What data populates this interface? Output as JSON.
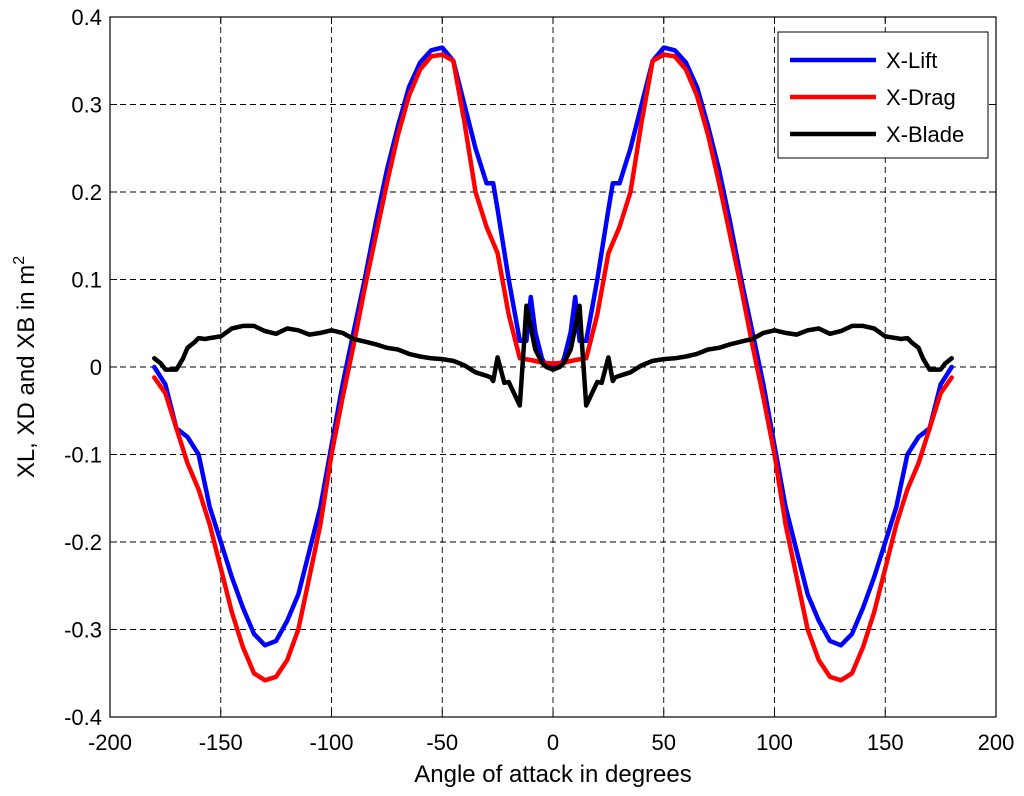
{
  "chart_data": {
    "type": "line",
    "title": "",
    "xlabel": "Angle of attack in degrees",
    "ylabel": "XL, XD and XB in m",
    "ylabel_superscript": "2",
    "xlim": [
      -200,
      200
    ],
    "ylim": [
      -0.4,
      0.4
    ],
    "xticks": [
      -200,
      -150,
      -100,
      -50,
      0,
      50,
      100,
      150,
      200
    ],
    "yticks": [
      -0.4,
      -0.3,
      -0.2,
      -0.1,
      0,
      0.1,
      0.2,
      0.3,
      0.4
    ],
    "xtick_labels": [
      "-200",
      "-150",
      "-100",
      "-50",
      "0",
      "50",
      "100",
      "150",
      "200"
    ],
    "ytick_labels": [
      "-0.4",
      "-0.3",
      "-0.2",
      "-0.1",
      "0",
      "0.1",
      "0.2",
      "0.3",
      "0.4"
    ],
    "grid": true,
    "legend_position": "top-right",
    "series": [
      {
        "name": "X-Lift",
        "color": "#0000ff",
        "x": [
          -180,
          -175,
          -170,
          -165,
          -160,
          -155,
          -150,
          -145,
          -140,
          -135,
          -130,
          -125,
          -120,
          -115,
          -110,
          -105,
          -100,
          -95,
          -90,
          -85,
          -80,
          -75,
          -70,
          -65,
          -60,
          -55,
          -50,
          -45,
          -40,
          -35,
          -30,
          -27,
          -25,
          -20,
          -15,
          -12,
          -10,
          -8,
          -5,
          -3,
          0,
          3,
          5,
          8,
          10,
          12,
          15,
          20,
          25,
          27,
          30,
          35,
          40,
          45,
          50,
          55,
          60,
          65,
          70,
          75,
          80,
          85,
          90,
          95,
          100,
          105,
          110,
          115,
          120,
          125,
          130,
          135,
          140,
          145,
          150,
          155,
          160,
          165,
          170,
          175,
          180
        ],
        "y": [
          0,
          -0.02,
          -0.07,
          -0.08,
          -0.1,
          -0.16,
          -0.2,
          -0.24,
          -0.275,
          -0.305,
          -0.318,
          -0.313,
          -0.29,
          -0.26,
          -0.21,
          -0.16,
          -0.09,
          -0.02,
          0.04,
          0.1,
          0.165,
          0.225,
          0.275,
          0.32,
          0.348,
          0.362,
          0.365,
          0.35,
          0.3,
          0.25,
          0.21,
          0.21,
          0.18,
          0.1,
          0.03,
          0.03,
          0.08,
          0.04,
          0.01,
          0,
          0,
          0,
          0.01,
          0.04,
          0.08,
          0.03,
          0.03,
          0.1,
          0.18,
          0.21,
          0.21,
          0.25,
          0.3,
          0.35,
          0.365,
          0.362,
          0.348,
          0.32,
          0.275,
          0.225,
          0.165,
          0.1,
          0.04,
          -0.02,
          -0.09,
          -0.16,
          -0.21,
          -0.26,
          -0.29,
          -0.313,
          -0.318,
          -0.305,
          -0.275,
          -0.24,
          -0.2,
          -0.16,
          -0.1,
          -0.08,
          -0.07,
          -0.02,
          0
        ]
      },
      {
        "name": "X-Drag",
        "color": "#ff0000",
        "x": [
          -180,
          -175,
          -170,
          -165,
          -160,
          -155,
          -150,
          -145,
          -140,
          -135,
          -130,
          -125,
          -120,
          -115,
          -110,
          -105,
          -100,
          -95,
          -90,
          -85,
          -80,
          -75,
          -70,
          -65,
          -60,
          -55,
          -50,
          -45,
          -40,
          -35,
          -30,
          -25,
          -20,
          -15,
          -10,
          -5,
          0,
          5,
          10,
          15,
          20,
          25,
          30,
          35,
          40,
          45,
          50,
          55,
          60,
          65,
          70,
          75,
          80,
          85,
          90,
          95,
          100,
          105,
          110,
          115,
          120,
          125,
          130,
          135,
          140,
          145,
          150,
          155,
          160,
          165,
          170,
          175,
          180
        ],
        "y": [
          -0.012,
          -0.03,
          -0.07,
          -0.11,
          -0.14,
          -0.18,
          -0.23,
          -0.28,
          -0.32,
          -0.35,
          -0.358,
          -0.354,
          -0.335,
          -0.3,
          -0.24,
          -0.18,
          -0.1,
          -0.035,
          0.025,
          0.09,
          0.15,
          0.21,
          0.265,
          0.31,
          0.34,
          0.355,
          0.357,
          0.35,
          0.28,
          0.2,
          0.16,
          0.13,
          0.06,
          0.01,
          0.008,
          0.005,
          0.004,
          0.005,
          0.008,
          0.01,
          0.06,
          0.13,
          0.16,
          0.2,
          0.28,
          0.35,
          0.357,
          0.355,
          0.34,
          0.31,
          0.265,
          0.21,
          0.15,
          0.09,
          0.025,
          -0.035,
          -0.1,
          -0.18,
          -0.24,
          -0.3,
          -0.335,
          -0.354,
          -0.358,
          -0.35,
          -0.32,
          -0.28,
          -0.23,
          -0.18,
          -0.14,
          -0.11,
          -0.07,
          -0.03,
          -0.012
        ]
      },
      {
        "name": "X-Blade",
        "color": "#000000",
        "x": [
          -180,
          -177,
          -175,
          -172,
          -170,
          -167,
          -165,
          -162,
          -160,
          -157,
          -155,
          -150,
          -145,
          -140,
          -135,
          -130,
          -125,
          -120,
          -115,
          -110,
          -105,
          -100,
          -95,
          -90,
          -85,
          -80,
          -75,
          -70,
          -65,
          -60,
          -55,
          -50,
          -45,
          -40,
          -35,
          -30,
          -28,
          -27,
          -25,
          -22,
          -20,
          -17,
          -15,
          -13,
          -12,
          -10,
          -8,
          -5,
          -3,
          0,
          3,
          5,
          8,
          10,
          12,
          13,
          15,
          17,
          20,
          22,
          25,
          27,
          28,
          30,
          35,
          40,
          45,
          50,
          55,
          60,
          65,
          70,
          75,
          80,
          85,
          90,
          95,
          100,
          105,
          110,
          115,
          120,
          125,
          130,
          135,
          140,
          145,
          150,
          155,
          157,
          160,
          162,
          165,
          167,
          170,
          172,
          175,
          177,
          180
        ],
        "y": [
          0.01,
          0.004,
          -0.003,
          -0.003,
          -0.003,
          0.01,
          0.022,
          0.028,
          0.033,
          0.032,
          0.033,
          0.035,
          0.044,
          0.047,
          0.047,
          0.041,
          0.038,
          0.044,
          0.042,
          0.037,
          0.039,
          0.042,
          0.039,
          0.032,
          0.029,
          0.026,
          0.022,
          0.02,
          0.015,
          0.012,
          0.01,
          0.009,
          0.007,
          0.002,
          -0.006,
          -0.01,
          -0.012,
          -0.016,
          0.011,
          -0.018,
          -0.017,
          -0.033,
          -0.044,
          0.03,
          0.07,
          0.045,
          0.02,
          0.005,
          0,
          -0.003,
          0,
          0.005,
          0.02,
          0.045,
          0.07,
          0.03,
          -0.044,
          -0.033,
          -0.017,
          -0.018,
          0.011,
          -0.016,
          -0.012,
          -0.01,
          -0.006,
          0.002,
          0.007,
          0.009,
          0.01,
          0.012,
          0.015,
          0.02,
          0.022,
          0.026,
          0.029,
          0.032,
          0.039,
          0.042,
          0.039,
          0.037,
          0.042,
          0.044,
          0.038,
          0.041,
          0.047,
          0.047,
          0.044,
          0.035,
          0.033,
          0.032,
          0.033,
          0.028,
          0.022,
          0.01,
          -0.003,
          -0.003,
          -0.003,
          0.004,
          0.01
        ]
      }
    ]
  }
}
